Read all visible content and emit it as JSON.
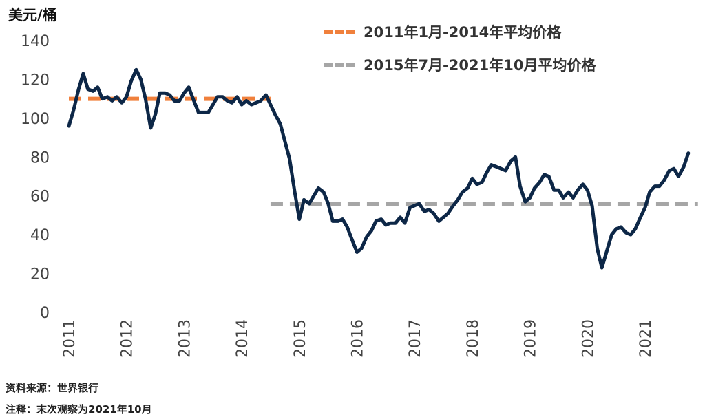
{
  "chart_data": {
    "type": "line",
    "ylabel": "美元/桶",
    "ylim": [
      0,
      140
    ],
    "yticks": [
      0,
      20,
      40,
      60,
      80,
      100,
      120,
      140
    ],
    "xlim": [
      2011,
      2021.917
    ],
    "xticks": [
      "2011",
      "2012",
      "2013",
      "2014",
      "2015",
      "2016",
      "2017",
      "2018",
      "2019",
      "2020",
      "2021"
    ],
    "grid": false,
    "legend_position": "top-right",
    "series": [
      {
        "name": "",
        "color": "#0d2747",
        "style": "solid",
        "points": [
          [
            2011.0,
            96
          ],
          [
            2011.08,
            104
          ],
          [
            2011.17,
            115
          ],
          [
            2011.25,
            123
          ],
          [
            2011.33,
            115
          ],
          [
            2011.42,
            114
          ],
          [
            2011.5,
            116
          ],
          [
            2011.58,
            110
          ],
          [
            2011.67,
            111
          ],
          [
            2011.75,
            109
          ],
          [
            2011.83,
            111
          ],
          [
            2011.92,
            108
          ],
          [
            2012.0,
            111
          ],
          [
            2012.08,
            119
          ],
          [
            2012.17,
            125
          ],
          [
            2012.25,
            120
          ],
          [
            2012.33,
            110
          ],
          [
            2012.42,
            95
          ],
          [
            2012.5,
            102
          ],
          [
            2012.58,
            113
          ],
          [
            2012.67,
            113
          ],
          [
            2012.75,
            112
          ],
          [
            2012.83,
            109
          ],
          [
            2012.92,
            109
          ],
          [
            2013.0,
            113
          ],
          [
            2013.08,
            116
          ],
          [
            2013.17,
            109
          ],
          [
            2013.25,
            103
          ],
          [
            2013.33,
            103
          ],
          [
            2013.42,
            103
          ],
          [
            2013.5,
            107
          ],
          [
            2013.58,
            111
          ],
          [
            2013.67,
            111
          ],
          [
            2013.75,
            109
          ],
          [
            2013.83,
            108
          ],
          [
            2013.92,
            111
          ],
          [
            2014.0,
            107
          ],
          [
            2014.08,
            109
          ],
          [
            2014.17,
            107
          ],
          [
            2014.25,
            108
          ],
          [
            2014.33,
            109
          ],
          [
            2014.42,
            112
          ],
          [
            2014.5,
            107
          ],
          [
            2014.58,
            102
          ],
          [
            2014.67,
            97
          ],
          [
            2014.75,
            88
          ],
          [
            2014.83,
            79
          ],
          [
            2014.92,
            62
          ],
          [
            2015.0,
            48
          ],
          [
            2015.08,
            58
          ],
          [
            2015.17,
            56
          ],
          [
            2015.25,
            60
          ],
          [
            2015.33,
            64
          ],
          [
            2015.42,
            62
          ],
          [
            2015.5,
            56
          ],
          [
            2015.58,
            47
          ],
          [
            2015.67,
            47
          ],
          [
            2015.75,
            48
          ],
          [
            2015.83,
            44
          ],
          [
            2015.92,
            37
          ],
          [
            2016.0,
            31
          ],
          [
            2016.08,
            33
          ],
          [
            2016.17,
            39
          ],
          [
            2016.25,
            42
          ],
          [
            2016.33,
            47
          ],
          [
            2016.42,
            48
          ],
          [
            2016.5,
            45
          ],
          [
            2016.58,
            46
          ],
          [
            2016.67,
            46
          ],
          [
            2016.75,
            49
          ],
          [
            2016.83,
            46
          ],
          [
            2016.92,
            54
          ],
          [
            2017.0,
            55
          ],
          [
            2017.08,
            56
          ],
          [
            2017.17,
            52
          ],
          [
            2017.25,
            53
          ],
          [
            2017.33,
            51
          ],
          [
            2017.42,
            47
          ],
          [
            2017.5,
            49
          ],
          [
            2017.58,
            51
          ],
          [
            2017.67,
            55
          ],
          [
            2017.75,
            58
          ],
          [
            2017.83,
            62
          ],
          [
            2017.92,
            64
          ],
          [
            2018.0,
            69
          ],
          [
            2018.08,
            66
          ],
          [
            2018.17,
            67
          ],
          [
            2018.25,
            72
          ],
          [
            2018.33,
            76
          ],
          [
            2018.42,
            75
          ],
          [
            2018.5,
            74
          ],
          [
            2018.58,
            73
          ],
          [
            2018.67,
            78
          ],
          [
            2018.75,
            80
          ],
          [
            2018.83,
            65
          ],
          [
            2018.92,
            57
          ],
          [
            2019.0,
            59
          ],
          [
            2019.08,
            64
          ],
          [
            2019.17,
            67
          ],
          [
            2019.25,
            71
          ],
          [
            2019.33,
            70
          ],
          [
            2019.42,
            63
          ],
          [
            2019.5,
            63
          ],
          [
            2019.58,
            59
          ],
          [
            2019.67,
            62
          ],
          [
            2019.75,
            59
          ],
          [
            2019.83,
            63
          ],
          [
            2019.92,
            66
          ],
          [
            2020.0,
            63
          ],
          [
            2020.08,
            55
          ],
          [
            2020.17,
            33
          ],
          [
            2020.25,
            23
          ],
          [
            2020.33,
            31
          ],
          [
            2020.42,
            40
          ],
          [
            2020.5,
            43
          ],
          [
            2020.58,
            44
          ],
          [
            2020.67,
            41
          ],
          [
            2020.75,
            40
          ],
          [
            2020.83,
            43
          ],
          [
            2020.92,
            49
          ],
          [
            2021.0,
            54
          ],
          [
            2021.08,
            62
          ],
          [
            2021.17,
            65
          ],
          [
            2021.25,
            65
          ],
          [
            2021.33,
            68
          ],
          [
            2021.42,
            73
          ],
          [
            2021.5,
            74
          ],
          [
            2021.58,
            70
          ],
          [
            2021.67,
            75
          ],
          [
            2021.75,
            82
          ]
        ]
      }
    ],
    "averages": [
      {
        "name": "2011年1月-2014年平均价格",
        "color": "#f0803c",
        "style": "dashed",
        "x_start": 2011.0,
        "x_end": 2014.5,
        "value": 110
      },
      {
        "name": "2015年7月-2021年10月平均价格",
        "color": "#a6a6a6",
        "style": "dashed",
        "x_start": 2014.5,
        "x_end": 2021.917,
        "value": 56
      }
    ]
  },
  "footer": {
    "source": "资料来源：世界银行",
    "note": "注释：末次观察为2021年10月"
  }
}
